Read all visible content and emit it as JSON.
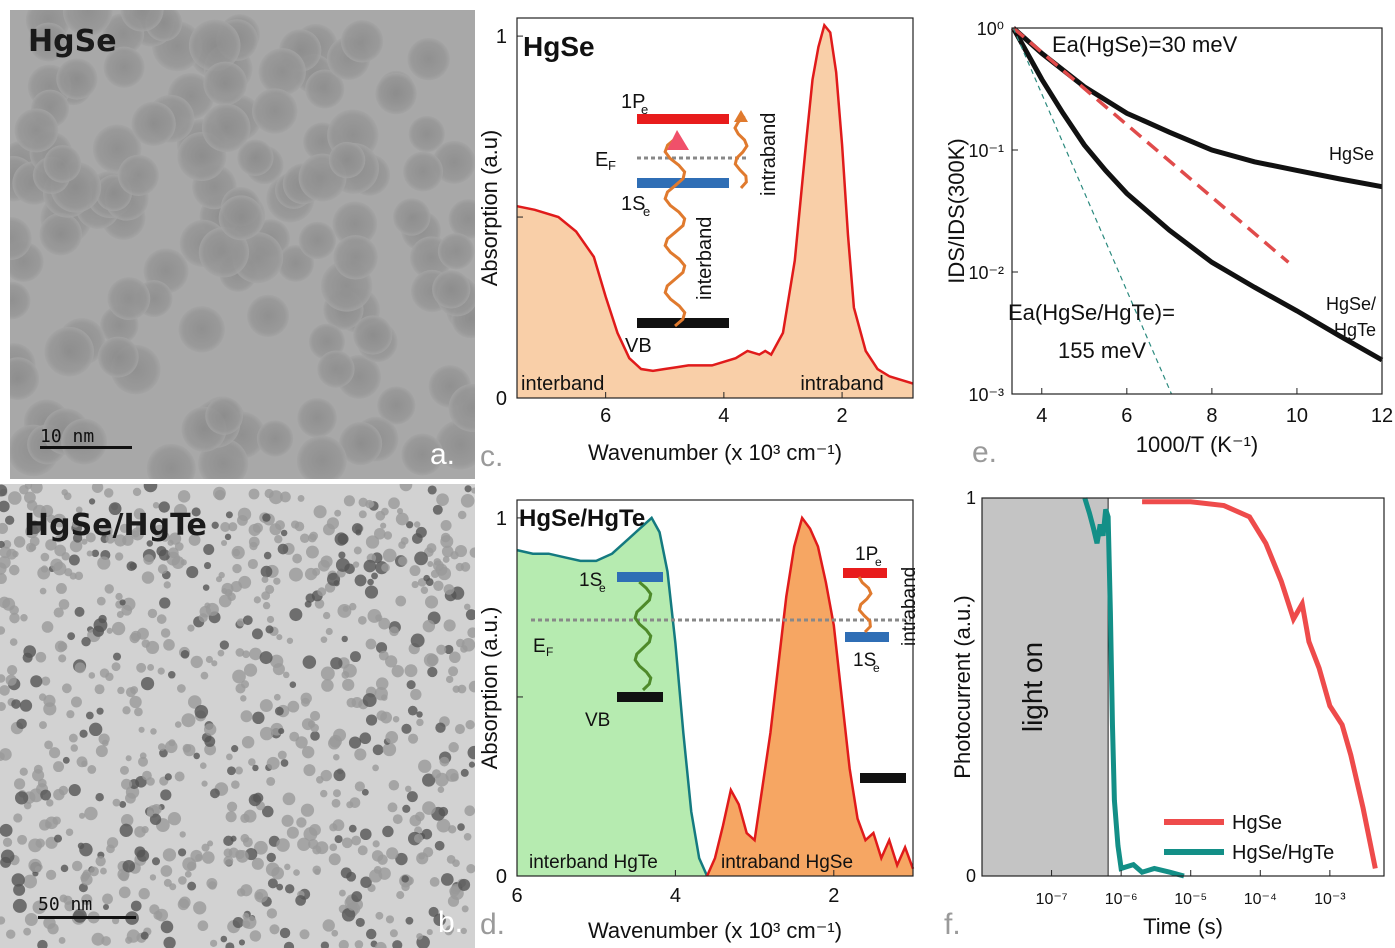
{
  "panels": {
    "a": {
      "letter": "a.",
      "label": "HgSe",
      "scale": "10 nm"
    },
    "b": {
      "letter": "b.",
      "label": "HgSe/HgTe",
      "scale": "50 nm"
    },
    "c": {
      "letter": "c."
    },
    "d": {
      "letter": "d."
    },
    "e": {
      "letter": "e."
    },
    "f": {
      "letter": "f."
    }
  },
  "chart_data": [
    {
      "id": "c",
      "type": "area",
      "title": "HgSe",
      "xlabel": "Wavenumber (x 10³ cm⁻¹)",
      "ylabel": "Absorption (a.u)",
      "xlim": [
        7.5,
        0.8
      ],
      "ylim": [
        0,
        1.05
      ],
      "xticks": [
        "6",
        "4",
        "2"
      ],
      "yticks": [
        "0",
        "1"
      ],
      "fill_color": "#f9cfa8",
      "line_color": "#e01b1b",
      "series": [
        {
          "x": [
            7.5,
            7.2,
            6.8,
            6.5,
            6.2,
            6.0,
            5.8,
            5.6,
            5.4,
            5.2,
            5.0,
            4.8,
            4.6,
            4.4,
            4.2,
            4.0,
            3.8,
            3.6,
            3.4,
            3.3,
            3.2,
            3.0,
            2.8,
            2.6,
            2.5,
            2.4,
            2.3,
            2.2,
            2.1,
            2.0,
            1.9,
            1.8,
            1.6,
            1.4,
            1.2,
            1.0,
            0.8
          ],
          "y": [
            0.53,
            0.52,
            0.5,
            0.46,
            0.39,
            0.28,
            0.18,
            0.11,
            0.08,
            0.075,
            0.08,
            0.085,
            0.09,
            0.09,
            0.09,
            0.1,
            0.11,
            0.13,
            0.12,
            0.13,
            0.12,
            0.18,
            0.38,
            0.72,
            0.88,
            0.97,
            1.03,
            1.01,
            0.9,
            0.7,
            0.45,
            0.25,
            0.13,
            0.08,
            0.06,
            0.05,
            0.04
          ]
        }
      ],
      "annotations": [
        "interband",
        "intraband"
      ],
      "inset": {
        "levels": [
          "1Pe",
          "EF",
          "1Se",
          "VB"
        ],
        "transitions": [
          "interband",
          "intraband"
        ]
      }
    },
    {
      "id": "d",
      "type": "area",
      "title": "HgSe/HgTe",
      "xlabel": "Wavenumber (x 10³ cm⁻¹)",
      "ylabel": "Absorption (a.u.)",
      "xlim": [
        6,
        1
      ],
      "ylim": [
        0,
        1.05
      ],
      "xticks": [
        "6",
        "4",
        "2"
      ],
      "yticks": [
        "0",
        "1"
      ],
      "series": [
        {
          "name": "interband HgTe",
          "color": "#147a80",
          "fill": "#b6ebb0",
          "x": [
            6.0,
            5.8,
            5.6,
            5.4,
            5.2,
            5.0,
            4.8,
            4.6,
            4.4,
            4.3,
            4.2,
            4.1,
            4.0,
            3.9,
            3.8,
            3.7,
            3.6
          ],
          "y": [
            0.91,
            0.9,
            0.9,
            0.89,
            0.88,
            0.88,
            0.9,
            0.94,
            0.98,
            1.0,
            0.96,
            0.85,
            0.65,
            0.4,
            0.18,
            0.05,
            0.0
          ]
        },
        {
          "name": "intraband HgSe",
          "color": "#e01b1b",
          "fill": "#f6a663",
          "x": [
            3.6,
            3.5,
            3.4,
            3.3,
            3.2,
            3.1,
            3.0,
            2.8,
            2.6,
            2.5,
            2.4,
            2.3,
            2.2,
            2.1,
            2.0,
            1.9,
            1.8,
            1.7,
            1.6,
            1.5,
            1.4,
            1.3,
            1.2,
            1.1,
            1.0
          ],
          "y": [
            0.0,
            0.05,
            0.14,
            0.24,
            0.2,
            0.12,
            0.1,
            0.4,
            0.78,
            0.92,
            1.0,
            0.97,
            0.92,
            0.82,
            0.7,
            0.5,
            0.3,
            0.16,
            0.1,
            0.12,
            0.05,
            0.1,
            0.03,
            0.08,
            0.02
          ]
        }
      ],
      "annotations": [
        "interband HgTe",
        "intraband HgSe"
      ],
      "inset": {
        "levels": [
          "1Se",
          "EF",
          "VB",
          "1Pe",
          "1Se"
        ],
        "transitions": [
          "intraband"
        ]
      }
    },
    {
      "id": "e",
      "type": "line",
      "xlabel": "1000/T (K⁻¹)",
      "ylabel": "IDS/IDS(300K)",
      "xlim": [
        3.3,
        12
      ],
      "ylim": [
        0.001,
        1
      ],
      "yscale": "log",
      "xticks": [
        "4",
        "6",
        "8",
        "10",
        "12"
      ],
      "yticks": [
        "10⁰",
        "10⁻¹",
        "10⁻²",
        "10⁻³"
      ],
      "series": [
        {
          "name": "HgSe",
          "x": [
            3.33,
            4,
            5,
            6,
            6.3,
            7,
            8,
            9,
            10,
            11,
            12
          ],
          "y": [
            1,
            0.62,
            0.33,
            0.2,
            0.18,
            0.14,
            0.1,
            0.08,
            0.068,
            0.058,
            0.05
          ]
        },
        {
          "name": "HgSe/HgTe",
          "x": [
            3.33,
            4,
            4.5,
            5,
            5.5,
            6,
            7,
            8,
            9,
            10,
            11,
            12
          ],
          "y": [
            1,
            0.38,
            0.2,
            0.11,
            0.068,
            0.044,
            0.022,
            0.012,
            0.0075,
            0.0048,
            0.003,
            0.0019
          ]
        },
        {
          "name": "Ea(HgSe)=30 meV fit",
          "style": "dashed",
          "color": "#e04b4b",
          "x": [
            3.33,
            9.8
          ],
          "y": [
            1,
            0.012
          ]
        },
        {
          "name": "Ea(HgSe/HgTe) fit",
          "style": "dashed",
          "color": "#2b8a7e",
          "x": [
            3.33,
            7.05
          ],
          "y": [
            1,
            0.001
          ]
        }
      ],
      "annotations": [
        "Ea(HgSe)=30 meV",
        "HgSe",
        "HgSe/",
        "HgTe",
        "Ea(HgSe/HgTe)=",
        "155 meV"
      ]
    },
    {
      "id": "f",
      "type": "line",
      "xlabel": "Time (s)",
      "ylabel": "Photocurrent (a.u.)",
      "xscale": "log",
      "xlim": [
        1e-08,
        0.006
      ],
      "ylim": [
        0,
        1
      ],
      "xticks": [
        "10⁻⁷",
        "10⁻⁶",
        "10⁻⁵",
        "10⁻⁴",
        "10⁻³"
      ],
      "yticks": [
        "0",
        "1"
      ],
      "shaded_region": {
        "label": "light on",
        "x": [
          1e-08,
          6.5e-07
        ]
      },
      "legend": "bottom-right",
      "series": [
        {
          "name": "HgSe",
          "color": "#ee4b4b",
          "x": [
            2e-06,
            1e-05,
            3e-05,
            7e-05,
            0.00012,
            0.0002,
            0.0003,
            0.0004,
            0.0005,
            0.0007,
            0.001,
            0.0015,
            0.002,
            0.003,
            0.0045
          ],
          "y": [
            0.99,
            0.99,
            0.98,
            0.95,
            0.88,
            0.78,
            0.68,
            0.72,
            0.62,
            0.55,
            0.45,
            0.4,
            0.32,
            0.18,
            0.02
          ]
        },
        {
          "name": "HgSe/HgTe",
          "color": "#138f87",
          "x": [
            3e-07,
            3.5e-07,
            4e-07,
            4.5e-07,
            5e-07,
            5.5e-07,
            6e-07,
            6.5e-07,
            7e-07,
            7.5e-07,
            8e-07,
            9e-07,
            1e-06,
            1.5e-06,
            2e-06,
            3e-06,
            5e-06,
            8e-06
          ],
          "y": [
            1.0,
            0.96,
            0.92,
            0.88,
            0.93,
            0.9,
            0.97,
            0.95,
            0.7,
            0.4,
            0.2,
            0.08,
            0.02,
            0.03,
            0.01,
            0.02,
            0.01,
            0.0
          ]
        }
      ]
    }
  ]
}
